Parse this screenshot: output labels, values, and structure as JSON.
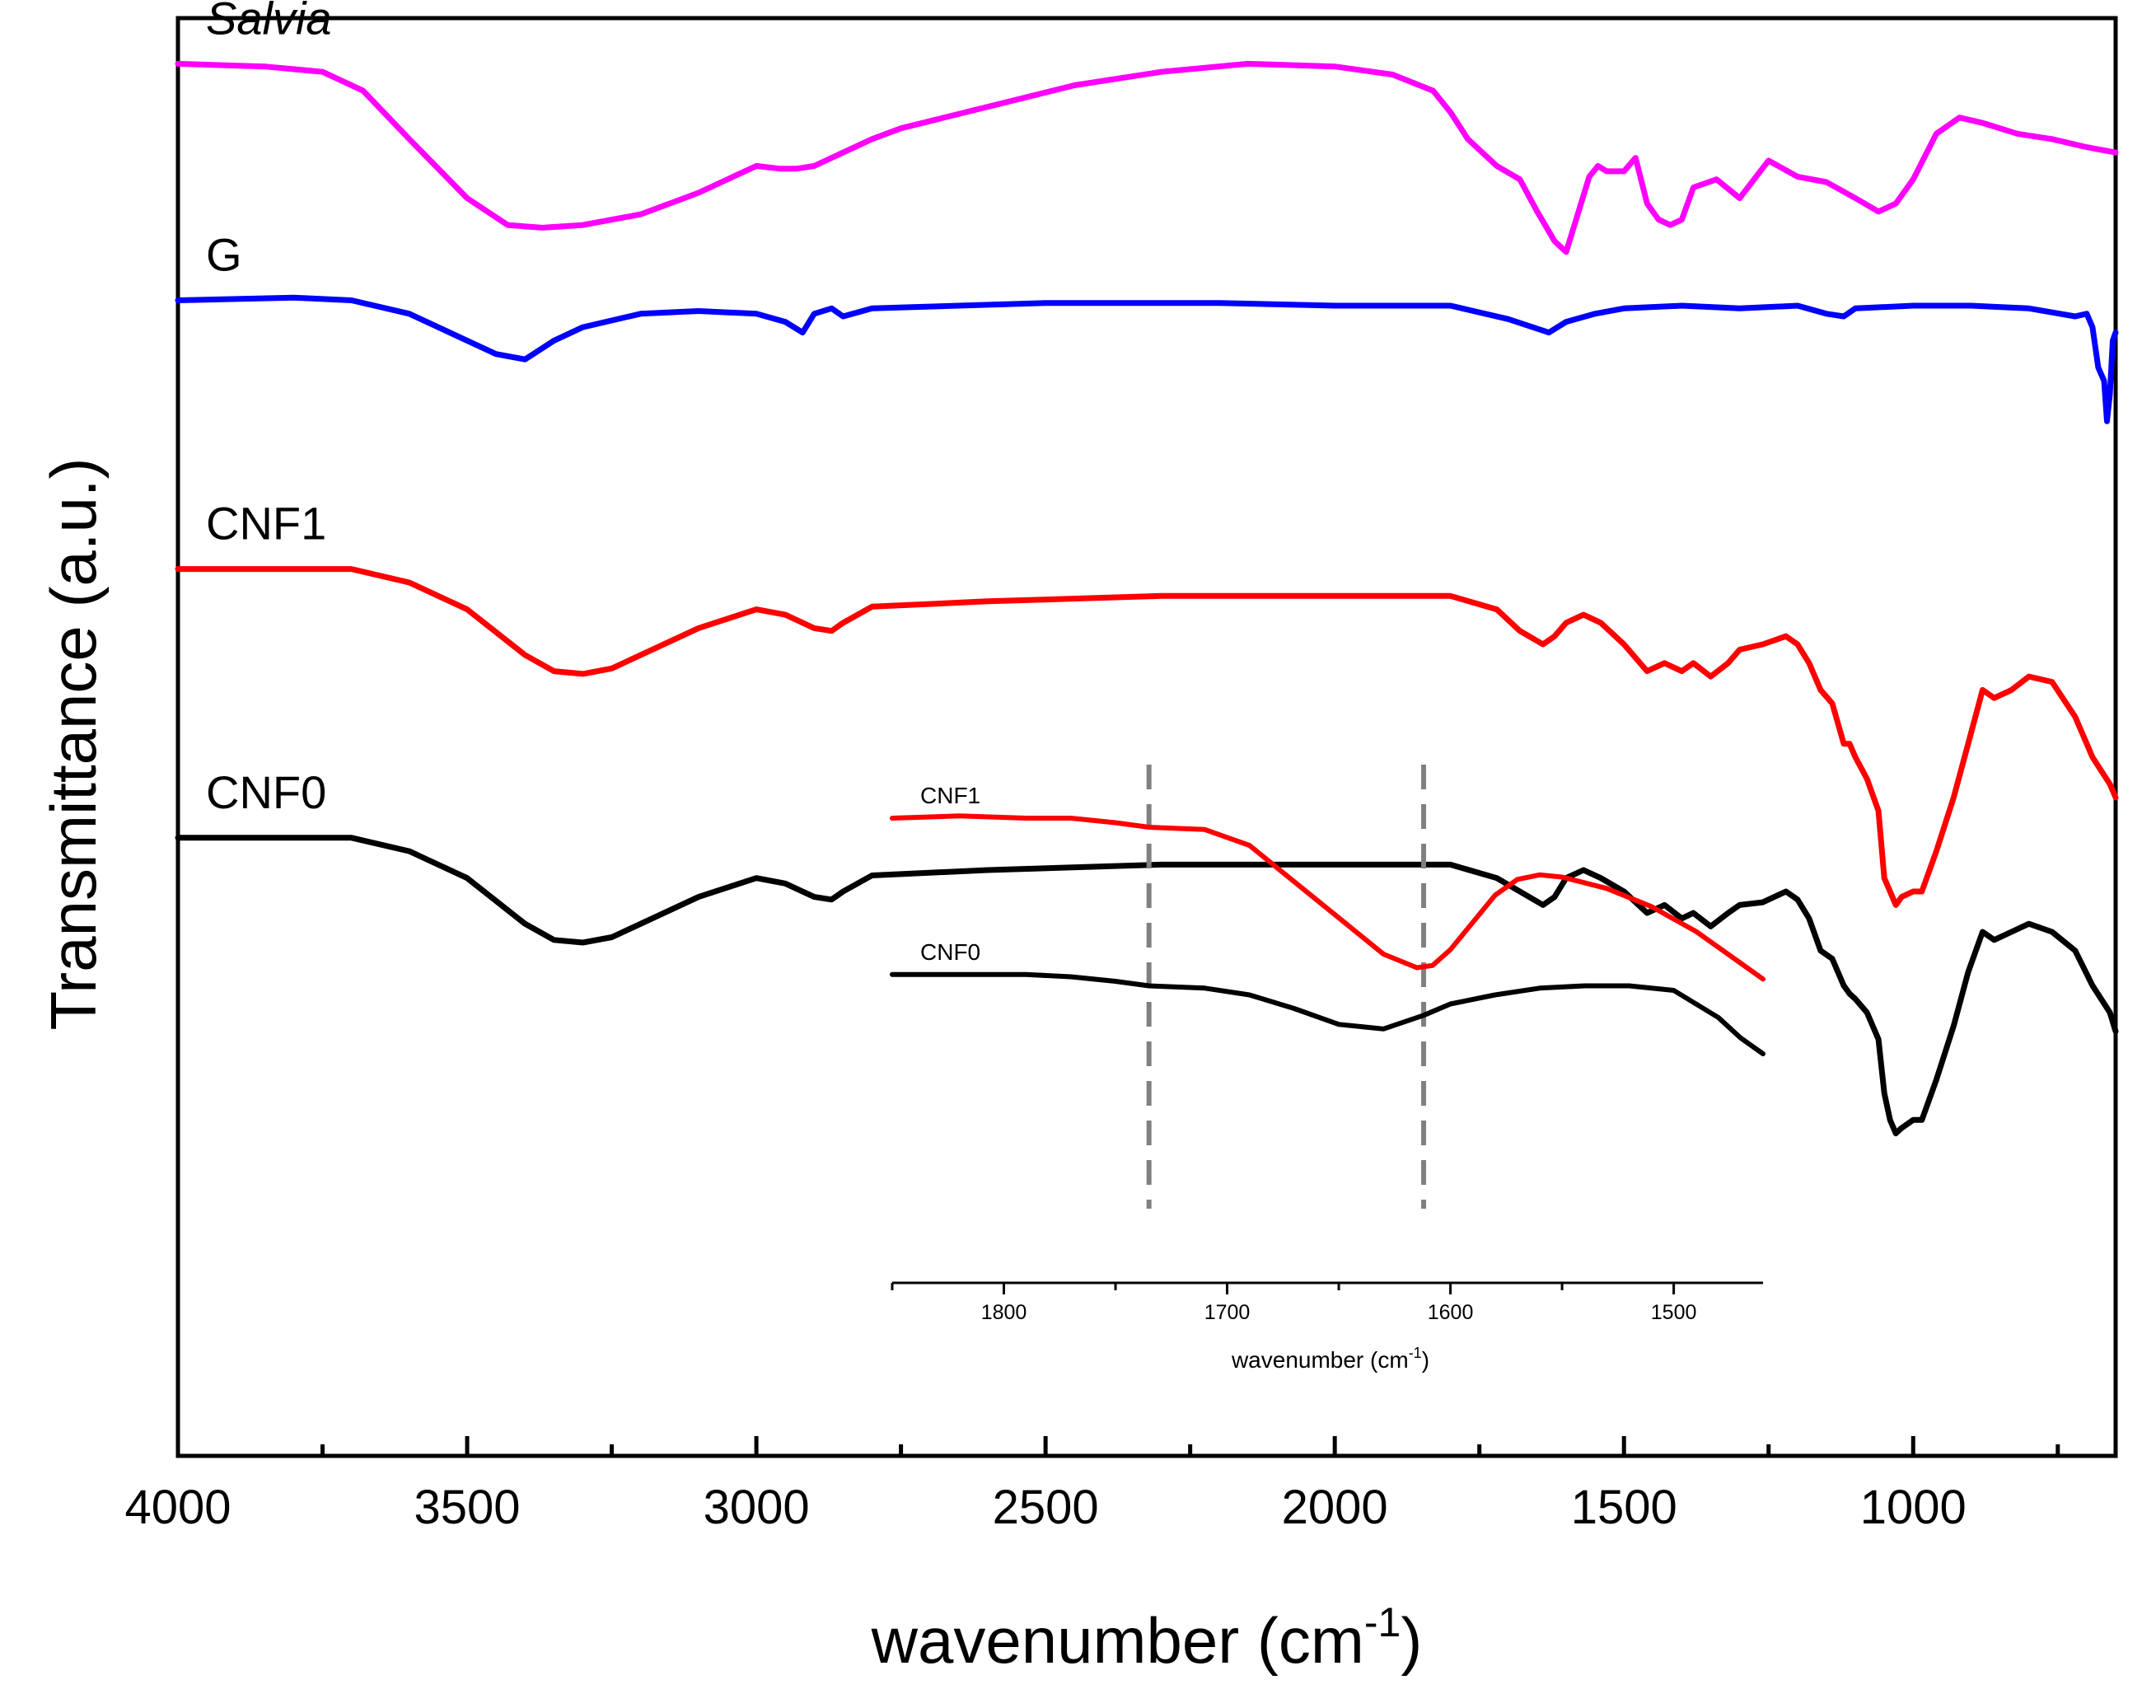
{
  "chart_data": [
    {
      "type": "line",
      "name": "FTIR spectra",
      "title": "",
      "xlabel": "wavenumber (cm",
      "xlabel_sup": "-1",
      "xlabel_close": ")",
      "ylabel": "Transmittance (a.u.)",
      "xlim": [
        4000,
        650
      ],
      "ylim": [
        -4.3,
        1.05
      ],
      "x_ticks": [
        4000,
        3500,
        3000,
        2500,
        2000,
        1500,
        1000
      ],
      "x_minor_ticks": [
        3750,
        3250,
        2750,
        2250,
        1750,
        1250,
        750
      ],
      "y_ticks_shown": false,
      "grid": false,
      "legend": "inline labels at left of each trace",
      "series": [
        {
          "name": "Salvia",
          "label_italic": true,
          "color": "#ff00ff",
          "x": [
            4000,
            3850,
            3750,
            3680,
            3600,
            3500,
            3430,
            3370,
            3300,
            3200,
            3100,
            3000,
            2960,
            2930,
            2900,
            2850,
            2800,
            2750,
            2600,
            2450,
            2300,
            2150,
            2000,
            1900,
            1830,
            1800,
            1770,
            1740,
            1720,
            1680,
            1650,
            1620,
            1600,
            1580,
            1560,
            1545,
            1530,
            1500,
            1480,
            1460,
            1440,
            1420,
            1400,
            1380,
            1340,
            1300,
            1250,
            1200,
            1150,
            1100,
            1060,
            1030,
            1000,
            960,
            920,
            880,
            820,
            760,
            700,
            650
          ],
          "y": [
            0.88,
            0.87,
            0.85,
            0.78,
            0.6,
            0.38,
            0.28,
            0.27,
            0.28,
            0.32,
            0.4,
            0.5,
            0.49,
            0.49,
            0.5,
            0.55,
            0.6,
            0.64,
            0.72,
            0.8,
            0.85,
            0.88,
            0.87,
            0.84,
            0.78,
            0.7,
            0.6,
            0.54,
            0.5,
            0.45,
            0.33,
            0.22,
            0.18,
            0.32,
            0.46,
            0.5,
            0.48,
            0.48,
            0.53,
            0.36,
            0.3,
            0.28,
            0.3,
            0.42,
            0.45,
            0.38,
            0.52,
            0.46,
            0.44,
            0.38,
            0.33,
            0.36,
            0.45,
            0.62,
            0.68,
            0.66,
            0.62,
            0.6,
            0.57,
            0.55
          ]
        },
        {
          "name": "G",
          "label_italic": false,
          "color": "#0000ff",
          "x": [
            4000,
            3800,
            3700,
            3600,
            3500,
            3450,
            3400,
            3350,
            3300,
            3200,
            3100,
            3000,
            2950,
            2920,
            2900,
            2870,
            2850,
            2800,
            2500,
            2200,
            2000,
            1800,
            1700,
            1630,
            1600,
            1550,
            1500,
            1400,
            1300,
            1200,
            1150,
            1120,
            1100,
            1000,
            900,
            800,
            720,
            700,
            690,
            680,
            670,
            665,
            660,
            655,
            650
          ],
          "y": [
            0.0,
            0.01,
            0.0,
            -0.05,
            -0.15,
            -0.2,
            -0.22,
            -0.15,
            -0.1,
            -0.05,
            -0.04,
            -0.05,
            -0.08,
            -0.12,
            -0.05,
            -0.03,
            -0.06,
            -0.03,
            -0.01,
            -0.01,
            -0.02,
            -0.02,
            -0.07,
            -0.12,
            -0.08,
            -0.05,
            -0.03,
            -0.02,
            -0.03,
            -0.02,
            -0.05,
            -0.06,
            -0.03,
            -0.02,
            -0.02,
            -0.03,
            -0.06,
            -0.05,
            -0.1,
            -0.25,
            -0.3,
            -0.45,
            -0.35,
            -0.15,
            -0.12
          ]
        },
        {
          "name": "CNF1",
          "label_italic": false,
          "color": "#ff0000",
          "x": [
            4000,
            3800,
            3700,
            3600,
            3500,
            3400,
            3350,
            3300,
            3250,
            3100,
            3000,
            2950,
            2900,
            2870,
            2850,
            2800,
            2600,
            2300,
            2000,
            1800,
            1720,
            1680,
            1640,
            1620,
            1600,
            1570,
            1540,
            1500,
            1460,
            1430,
            1400,
            1380,
            1350,
            1320,
            1300,
            1260,
            1220,
            1200,
            1180,
            1160,
            1140,
            1120,
            1110,
            1100,
            1080,
            1060,
            1050,
            1040,
            1030,
            1020,
            1000,
            985,
            960,
            930,
            905,
            880,
            860,
            830,
            800,
            760,
            720,
            690,
            660,
            650
          ],
          "y": [
            -1.0,
            -1.0,
            -1.0,
            -1.05,
            -1.15,
            -1.32,
            -1.38,
            -1.39,
            -1.37,
            -1.22,
            -1.15,
            -1.17,
            -1.22,
            -1.23,
            -1.2,
            -1.14,
            -1.12,
            -1.1,
            -1.1,
            -1.1,
            -1.15,
            -1.23,
            -1.28,
            -1.25,
            -1.2,
            -1.17,
            -1.2,
            -1.28,
            -1.38,
            -1.35,
            -1.38,
            -1.35,
            -1.4,
            -1.35,
            -1.3,
            -1.28,
            -1.25,
            -1.28,
            -1.35,
            -1.45,
            -1.5,
            -1.65,
            -1.65,
            -1.7,
            -1.78,
            -1.9,
            -2.15,
            -2.2,
            -2.25,
            -2.22,
            -2.2,
            -2.2,
            -2.05,
            -1.85,
            -1.65,
            -1.45,
            -1.48,
            -1.45,
            -1.4,
            -1.42,
            -1.55,
            -1.7,
            -1.8,
            -1.85
          ]
        },
        {
          "name": "CNF0",
          "label_italic": false,
          "color": "#000000",
          "x": [
            4000,
            3800,
            3700,
            3600,
            3500,
            3400,
            3350,
            3300,
            3250,
            3100,
            3000,
            2950,
            2900,
            2870,
            2850,
            2800,
            2600,
            2300,
            2000,
            1800,
            1720,
            1680,
            1640,
            1620,
            1600,
            1570,
            1540,
            1500,
            1460,
            1430,
            1400,
            1380,
            1350,
            1320,
            1300,
            1260,
            1220,
            1200,
            1180,
            1160,
            1140,
            1120,
            1110,
            1100,
            1080,
            1060,
            1050,
            1040,
            1030,
            1020,
            1000,
            985,
            960,
            930,
            905,
            880,
            860,
            830,
            800,
            760,
            720,
            690,
            660,
            650
          ],
          "y": [
            -2.0,
            -2.0,
            -2.0,
            -2.05,
            -2.15,
            -2.32,
            -2.38,
            -2.39,
            -2.37,
            -2.22,
            -2.15,
            -2.17,
            -2.22,
            -2.23,
            -2.2,
            -2.14,
            -2.12,
            -2.1,
            -2.1,
            -2.1,
            -2.15,
            -2.2,
            -2.25,
            -2.22,
            -2.15,
            -2.12,
            -2.15,
            -2.2,
            -2.28,
            -2.25,
            -2.3,
            -2.28,
            -2.33,
            -2.28,
            -2.25,
            -2.24,
            -2.2,
            -2.23,
            -2.3,
            -2.42,
            -2.45,
            -2.55,
            -2.58,
            -2.6,
            -2.65,
            -2.75,
            -2.95,
            -3.05,
            -3.1,
            -3.08,
            -3.05,
            -3.05,
            -2.9,
            -2.7,
            -2.5,
            -2.35,
            -2.38,
            -2.35,
            -2.32,
            -2.35,
            -2.42,
            -2.55,
            -2.65,
            -2.72
          ]
        }
      ]
    },
    {
      "type": "line",
      "name": "inset",
      "title": "",
      "xlabel": "wavenumber (cm",
      "xlabel_sup": "-1",
      "xlabel_close": ")",
      "ylabel": "",
      "xlim": [
        1850,
        1460
      ],
      "ylim": [
        -1.0,
        1.0
      ],
      "x_ticks": [
        1800,
        1700,
        1600,
        1500
      ],
      "x_minor_ticks": [
        1850,
        1750,
        1650,
        1550
      ],
      "reference_lines": [
        1735,
        1612
      ],
      "reference_line_color": "#808080",
      "grid": false,
      "series": [
        {
          "name": "CNF1",
          "color": "#ff0000",
          "x": [
            1850,
            1820,
            1790,
            1770,
            1750,
            1735,
            1710,
            1690,
            1670,
            1650,
            1630,
            1615,
            1608,
            1600,
            1590,
            1580,
            1570,
            1560,
            1550,
            1530,
            1510,
            1490,
            1470,
            1460
          ],
          "y": [
            0.88,
            0.89,
            0.88,
            0.88,
            0.86,
            0.84,
            0.83,
            0.76,
            0.6,
            0.44,
            0.28,
            0.22,
            0.23,
            0.3,
            0.42,
            0.54,
            0.61,
            0.63,
            0.62,
            0.57,
            0.49,
            0.38,
            0.24,
            0.17
          ]
        },
        {
          "name": "CNF0",
          "color": "#000000",
          "x": [
            1850,
            1820,
            1790,
            1770,
            1750,
            1735,
            1710,
            1690,
            1670,
            1650,
            1630,
            1612,
            1600,
            1580,
            1560,
            1540,
            1520,
            1500,
            1480,
            1470,
            1460
          ],
          "y": [
            0.19,
            0.19,
            0.19,
            0.18,
            0.16,
            0.14,
            0.13,
            0.1,
            0.04,
            -0.03,
            -0.05,
            0.01,
            0.06,
            0.1,
            0.13,
            0.14,
            0.14,
            0.12,
            0.0,
            -0.09,
            -0.16
          ]
        }
      ]
    }
  ]
}
